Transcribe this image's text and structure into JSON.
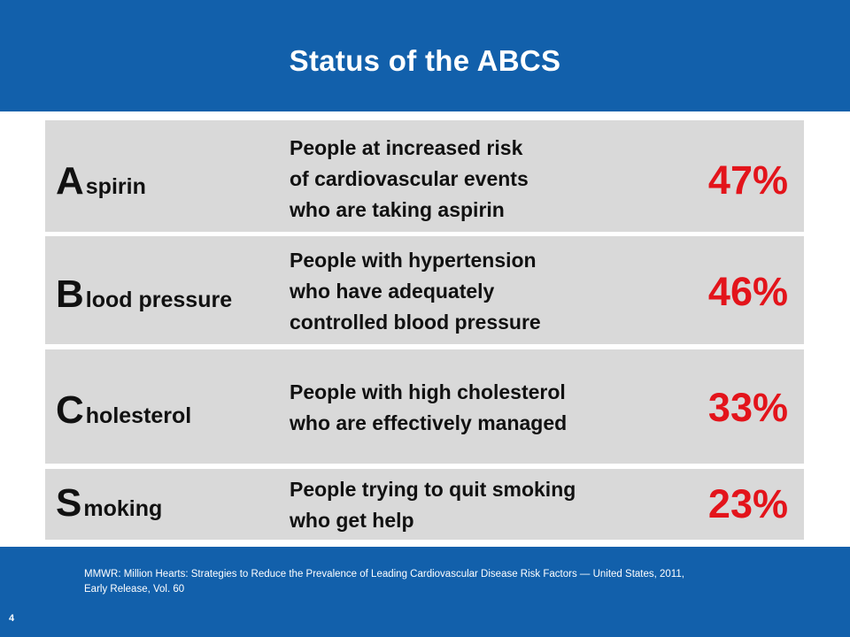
{
  "title": "Status of the ABCS",
  "rows": [
    {
      "initial": "A",
      "rest": "spirin",
      "description": [
        "People at increased risk",
        "of cardiovascular events",
        "who are taking aspirin"
      ],
      "percent": "47%"
    },
    {
      "initial": "B",
      "rest": "lood pressure",
      "description": [
        "People with hypertension",
        "who have adequately",
        "controlled blood pressure"
      ],
      "percent": "46%"
    },
    {
      "initial": "C",
      "rest": "holesterol",
      "description": [
        "People with high cholesterol",
        "who are effectively managed"
      ],
      "percent": "33%"
    },
    {
      "initial": "S",
      "rest": "moking",
      "description": [
        "People trying to quit smoking",
        "who get help"
      ],
      "percent": "23%"
    }
  ],
  "citation": [
    "MMWR: Million Hearts: Strategies to Reduce the Prevalence of Leading Cardiovascular Disease Risk Factors — United States, 2011,",
    "Early Release, Vol. 60"
  ],
  "page_number": "4",
  "colors": {
    "band": "#1260ab",
    "row_background": "#d9d9d9",
    "percent": "#e3141b"
  }
}
